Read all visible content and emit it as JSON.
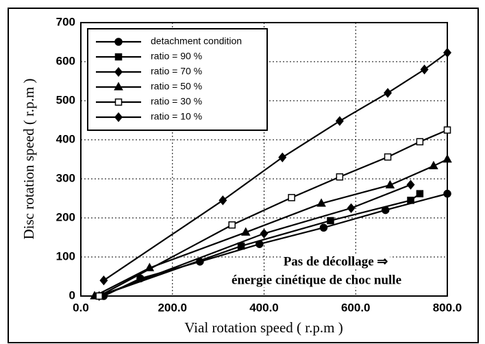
{
  "chart_data": {
    "type": "line",
    "xlabel": "Vial rotation speed ( r.p.m )",
    "ylabel": "Disc rotation speed ( r.p.m )",
    "annotations": [
      "Pas de décollage ⇒",
      "énergie cinétique de choc nulle"
    ],
    "xlim": [
      0,
      800
    ],
    "ylim": [
      0,
      700
    ],
    "xticks": [
      {
        "value": 0,
        "label": "0.0"
      },
      {
        "value": 200,
        "label": "200.0"
      },
      {
        "value": 400,
        "label": "400.0"
      },
      {
        "value": 600,
        "label": "600.0"
      },
      {
        "value": 800,
        "label": "800.0"
      }
    ],
    "yticks": [
      0,
      100,
      200,
      300,
      400,
      500,
      600,
      700
    ],
    "grid": true,
    "legend": "upper left",
    "series": [
      {
        "name": "detachment condition",
        "color": "#000000",
        "marker": "circle",
        "x": [
          50,
          130,
          260,
          390,
          530,
          665,
          800
        ],
        "values": [
          0,
          45,
          88,
          133,
          175,
          220,
          262
        ]
      },
      {
        "name": "ratio = 90 %",
        "color": "#000000",
        "marker": "square",
        "x": [
          40,
          350,
          545,
          720,
          740
        ],
        "values": [
          0,
          128,
          193,
          245,
          262
        ]
      },
      {
        "name": "ratio = 70 %",
        "color": "#000000",
        "marker": "diamond",
        "x": [
          40,
          400,
          590,
          720
        ],
        "values": [
          0,
          160,
          225,
          285
        ]
      },
      {
        "name": "ratio = 50 %",
        "color": "#000000",
        "marker": "triangle",
        "x": [
          30,
          150,
          360,
          525,
          675,
          770,
          800
        ],
        "values": [
          0,
          72,
          163,
          237,
          284,
          333,
          350
        ]
      },
      {
        "name": "ratio = 30 %",
        "color": "#000000",
        "marker": "open-square",
        "x": [
          40,
          330,
          460,
          565,
          670,
          740,
          800
        ],
        "values": [
          0,
          182,
          252,
          305,
          356,
          395,
          425
        ]
      },
      {
        "name": "ratio = 10 %",
        "color": "#000000",
        "marker": "diamond",
        "x": [
          50,
          310,
          440,
          565,
          670,
          750,
          800
        ],
        "values": [
          40,
          245,
          355,
          448,
          520,
          580,
          623
        ]
      }
    ]
  }
}
